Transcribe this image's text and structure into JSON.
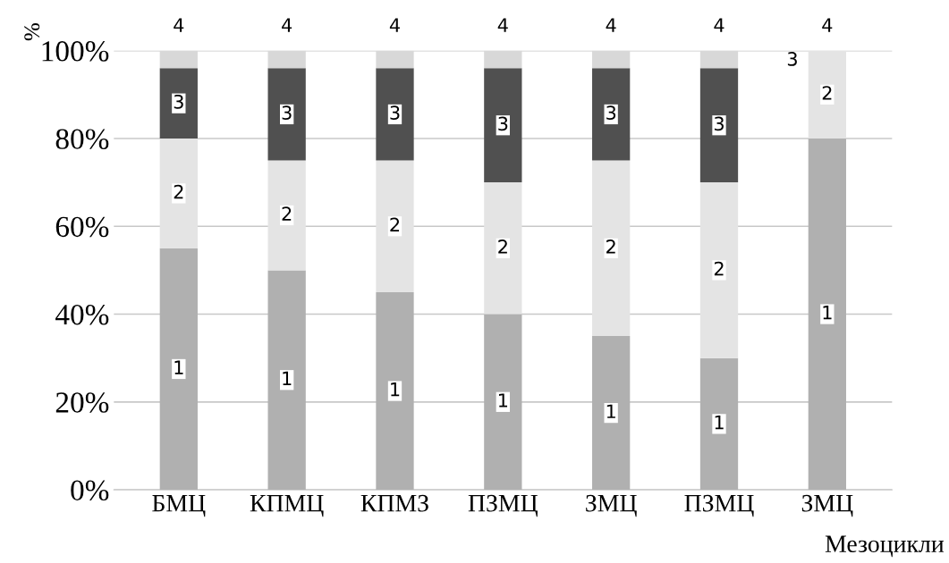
{
  "chart_data": {
    "type": "bar",
    "stacked": true,
    "ylabel": "%",
    "xlabel": "Мезоцикли",
    "categories": [
      "БМЦ",
      "КПМЦ",
      "КПМЗ",
      "ПЗМЦ",
      "ЗМЦ",
      "ПЗМЦ",
      "ЗМЦ"
    ],
    "series": [
      {
        "name": "1",
        "color": "#b0b0b0",
        "values": [
          55,
          50,
          45,
          40,
          35,
          30,
          80
        ]
      },
      {
        "name": "2",
        "color": "#e4e4e4",
        "values": [
          25,
          25,
          30,
          30,
          40,
          40,
          20
        ]
      },
      {
        "name": "3",
        "color": "#505050",
        "values": [
          16,
          21,
          21,
          26,
          21,
          26,
          0
        ]
      },
      {
        "name": "4",
        "color": "#d8d8d8",
        "values": [
          4,
          4,
          4,
          4,
          4,
          4,
          0
        ]
      }
    ],
    "ylim": [
      0,
      100
    ],
    "yticks": [
      {
        "value": 0,
        "label": "0%"
      },
      {
        "value": 20,
        "label": "20%"
      },
      {
        "value": 40,
        "label": "40%"
      },
      {
        "value": 60,
        "label": "60%"
      },
      {
        "value": 80,
        "label": "80%"
      },
      {
        "value": 100,
        "label": "100%"
      }
    ],
    "grid": "y",
    "legend": false
  }
}
